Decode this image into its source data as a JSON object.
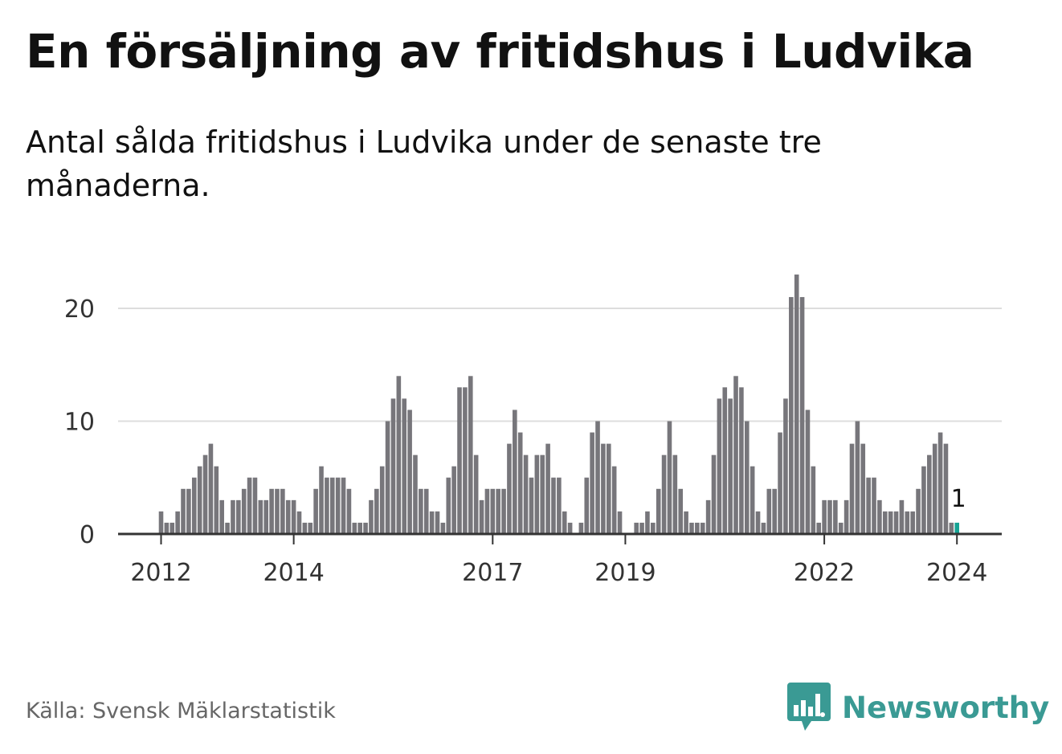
{
  "title": "En försäljning av fritidshus i Ludvika",
  "subtitle": "Antal sålda fritidshus i Ludvika under de senaste tre månaderna.",
  "source": "Källa: Svensk Mäklarstatistik",
  "brand": {
    "name": "Newsworthy",
    "color": "#3a9a94"
  },
  "colors": {
    "bar": "#77767b",
    "highlight": "#16a394",
    "grid": "#dddddd",
    "axis": "#333333",
    "text": "#333333"
  },
  "chart_data": {
    "type": "bar",
    "title": "",
    "xlabel": "",
    "ylabel": "",
    "ylim": [
      0,
      23
    ],
    "yticks": [
      0,
      10,
      20
    ],
    "grid": true,
    "x_tick_labels": [
      {
        "label": "2012",
        "index": 0
      },
      {
        "label": "2014",
        "index": 24
      },
      {
        "label": "2017",
        "index": 60
      },
      {
        "label": "2019",
        "index": 84
      },
      {
        "label": "2022",
        "index": 120
      },
      {
        "label": "2024",
        "index": 144
      }
    ],
    "first_period": "2012-01",
    "last_period": "2024-01",
    "values": [
      2,
      1,
      1,
      2,
      4,
      4,
      5,
      6,
      7,
      8,
      6,
      3,
      1,
      3,
      3,
      4,
      5,
      5,
      3,
      3,
      4,
      4,
      4,
      3,
      3,
      2,
      1,
      1,
      4,
      6,
      5,
      5,
      5,
      5,
      4,
      1,
      1,
      1,
      3,
      4,
      6,
      10,
      12,
      14,
      12,
      11,
      7,
      4,
      4,
      2,
      2,
      1,
      5,
      6,
      13,
      13,
      14,
      7,
      3,
      4,
      4,
      4,
      4,
      8,
      11,
      9,
      7,
      5,
      7,
      7,
      8,
      5,
      5,
      2,
      1,
      0,
      1,
      5,
      9,
      10,
      8,
      8,
      6,
      2,
      0,
      0,
      1,
      1,
      2,
      1,
      4,
      7,
      10,
      7,
      4,
      2,
      1,
      1,
      1,
      3,
      7,
      12,
      13,
      12,
      14,
      13,
      10,
      6,
      2,
      1,
      4,
      4,
      9,
      12,
      21,
      23,
      21,
      11,
      6,
      1,
      3,
      3,
      3,
      1,
      3,
      8,
      10,
      8,
      5,
      5,
      3,
      2,
      2,
      2,
      3,
      2,
      2,
      4,
      6,
      7,
      8,
      9,
      8,
      1,
      1
    ],
    "highlight_index": 144,
    "annotation": {
      "index": 144,
      "label": "1"
    }
  }
}
